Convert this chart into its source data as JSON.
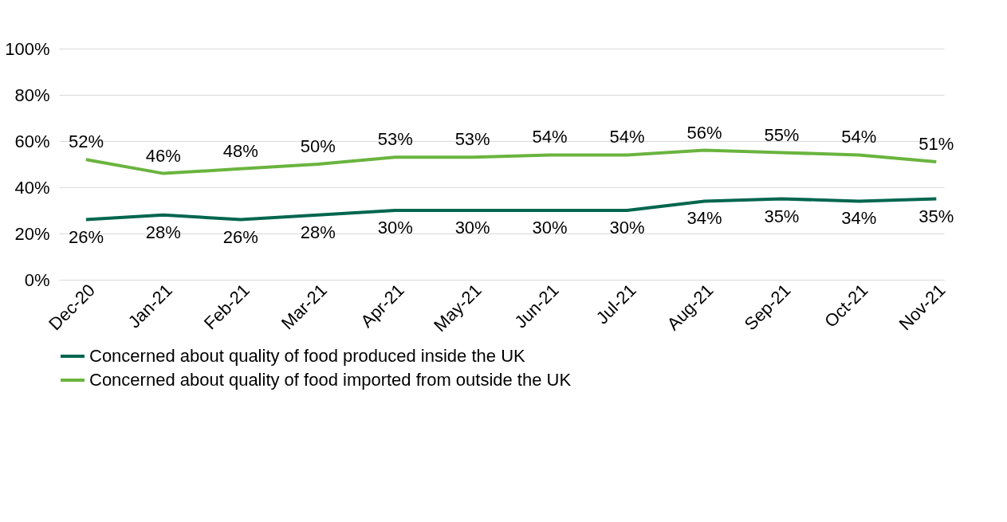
{
  "chart_data": {
    "type": "line",
    "categories": [
      "Dec-20",
      "Jan-21",
      "Feb-21",
      "Mar-21",
      "Apr-21",
      "May-21",
      "Jun-21",
      "Jul-21",
      "Aug-21",
      "Sep-21",
      "Oct-21",
      "Nov-21"
    ],
    "series": [
      {
        "name": "Concerned about quality of food produced inside the UK",
        "color": "#00664f",
        "values": [
          26,
          28,
          26,
          28,
          30,
          30,
          30,
          30,
          34,
          35,
          34,
          35
        ],
        "value_labels": [
          "26%",
          "28%",
          "26%",
          "28%",
          "30%",
          "30%",
          "30%",
          "30%",
          "34%",
          "35%",
          "34%",
          "35%"
        ]
      },
      {
        "name": "Concerned about quality of food imported from outside the UK",
        "color": "#6ab43e",
        "values": [
          52,
          46,
          48,
          50,
          53,
          53,
          54,
          54,
          56,
          55,
          54,
          51
        ],
        "value_labels": [
          "52%",
          "46%",
          "48%",
          "50%",
          "53%",
          "53%",
          "54%",
          "54%",
          "56%",
          "55%",
          "54%",
          "51%"
        ]
      }
    ],
    "ylim": [
      0,
      100
    ],
    "yticks": [
      {
        "value": 0,
        "label": "0%"
      },
      {
        "value": 20,
        "label": "20%"
      },
      {
        "value": 40,
        "label": "40%"
      },
      {
        "value": 60,
        "label": "60%"
      },
      {
        "value": 80,
        "label": "80%"
      },
      {
        "value": 100,
        "label": "100%"
      }
    ],
    "grid": "y",
    "legend": "bottom",
    "marker": "none",
    "line_style": "solid"
  }
}
